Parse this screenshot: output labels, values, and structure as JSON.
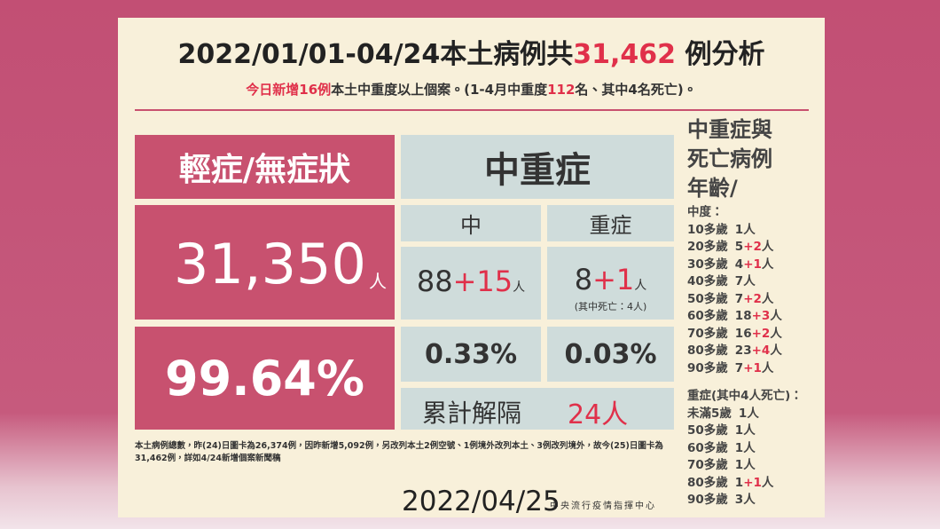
{
  "header": {
    "title": [
      "2022/01/01-04/24本土病例共",
      "31,462",
      " 例分析"
    ],
    "subtitle": [
      "今日新增16例",
      "本土中重度以上個案。(1-4月中重度",
      "112",
      "名、其中4名死亡)。"
    ]
  },
  "mild": {
    "label": "輕症/無症狀",
    "count": "31,350",
    "unit": "人",
    "percent": "99.64%"
  },
  "severe": {
    "label": "中重症",
    "moderate": {
      "label": "中",
      "base": "88",
      "plus": "+15",
      "unit": "人",
      "percent": "0.33%"
    },
    "critical": {
      "label": "重症",
      "base": "8",
      "plus": "+1",
      "unit": "人",
      "note": "(其中死亡：4人)",
      "percent": "0.03%"
    },
    "released": {
      "label": "累計解隔",
      "value": "24人"
    }
  },
  "age_panel": {
    "title": [
      "中重症與",
      "死亡病例",
      "年齡/"
    ],
    "moderate_heading": "中度：",
    "moderate_rows": [
      {
        "age": "10多歲",
        "base": "1",
        "unit": "人"
      },
      {
        "age": "20多歲",
        "base": "5",
        "plus": "+2",
        "unit": "人"
      },
      {
        "age": "30多歲",
        "base": "4",
        "plus": "+1",
        "unit": "人"
      },
      {
        "age": "40多歲",
        "base": "7",
        "unit": "人"
      },
      {
        "age": "50多歲",
        "base": "7",
        "plus": "+2",
        "unit": "人"
      },
      {
        "age": "60多歲",
        "base": "18",
        "plus": "+3",
        "unit": "人"
      },
      {
        "age": "70多歲",
        "base": "16",
        "plus": "+2",
        "unit": "人"
      },
      {
        "age": "80多歲",
        "base": "23",
        "plus": "+4",
        "unit": "人"
      },
      {
        "age": "90多歲",
        "base": "7",
        "plus": "+1",
        "unit": "人"
      }
    ],
    "critical_heading": "重症(其中4人死亡)：",
    "critical_rows": [
      {
        "age": "未滿5歲",
        "base": "1",
        "unit": "人"
      },
      {
        "age": "50多歲",
        "base": "1",
        "unit": "人"
      },
      {
        "age": "60多歲",
        "base": "1",
        "unit": "人"
      },
      {
        "age": "70多歲",
        "base": "1",
        "unit": "人"
      },
      {
        "age": "80多歲",
        "base": "1",
        "plus": "+1",
        "unit": "人"
      },
      {
        "age": "90多歲",
        "base": "3",
        "unit": "人"
      }
    ]
  },
  "footnote": [
    "本土病例總數，昨(24)日圖卡為26,374例，因昨新增5,092例，另改列本土2例空號、1例境外改列本土、3例改列境外，故今(25)日圖卡為",
    "31,462例，詳如4/24新增個案新聞稿"
  ],
  "footer": {
    "date": "2022/04/25",
    "org": "中央流行疫情指揮中心"
  }
}
